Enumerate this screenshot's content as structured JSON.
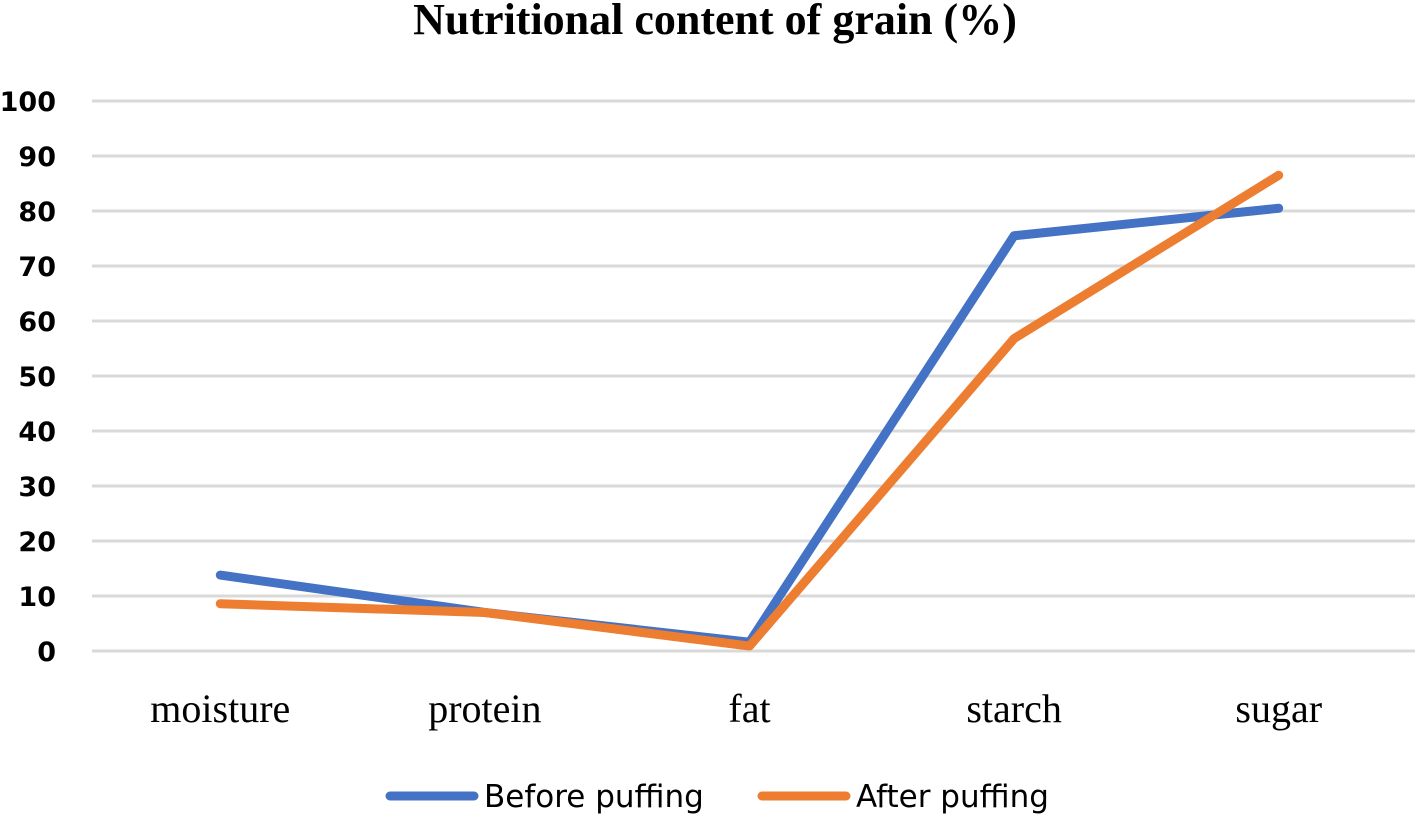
{
  "chart_data": {
    "type": "line",
    "title": "Nutritional content of grain (%)",
    "xlabel": "",
    "ylabel": "",
    "categories": [
      "moisture",
      "protein",
      "fat",
      "starch",
      "sugar"
    ],
    "ylim": [
      0,
      100
    ],
    "yticks": [
      0,
      10,
      20,
      30,
      40,
      50,
      60,
      70,
      80,
      90,
      100
    ],
    "ytick_labels": [
      "0",
      "10",
      "20",
      "30",
      "40",
      "50",
      "60",
      "70",
      "80",
      "90",
      "100"
    ],
    "grid": true,
    "legend_position": "bottom",
    "series": [
      {
        "name": "Before puffing",
        "color": "#4472c4",
        "values": [
          13.8,
          7.0,
          1.6,
          75.5,
          80.5
        ]
      },
      {
        "name": "After puffing",
        "color": "#ed7d31",
        "values": [
          8.6,
          7.0,
          0.9,
          56.8,
          86.5
        ]
      }
    ]
  }
}
